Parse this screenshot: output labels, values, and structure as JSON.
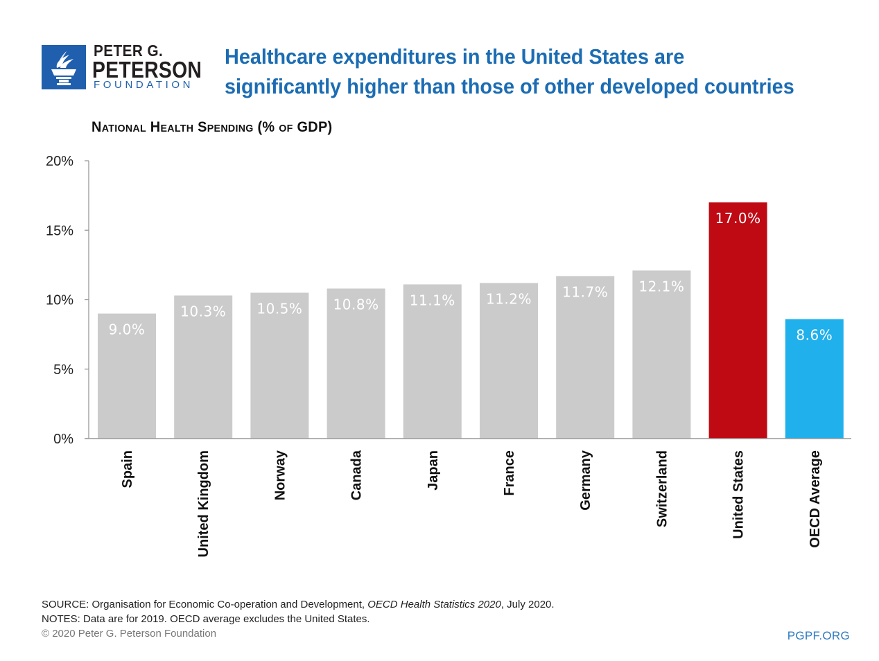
{
  "logo": {
    "icon": "torch-icon",
    "line1": "PETER G.",
    "line2": "PETERSON",
    "line3": "FOUNDATION"
  },
  "headline": {
    "line1": "Healthcare expenditures in the United States are",
    "line2": "significantly higher than those of other developed countries"
  },
  "colors": {
    "brand_blue": "#1f5fad",
    "headline_blue": "#1b6cb3",
    "bar_gray": "#cbcbcb",
    "bar_us_red": "#bf0a14",
    "bar_oecd_blue": "#20b0ec",
    "axis_gray": "#999999"
  },
  "chart_data": {
    "type": "bar",
    "title": "National Health Spending (% of GDP)",
    "xlabel": "",
    "ylabel": "",
    "ylim": [
      0,
      20
    ],
    "yticks": [
      0,
      5,
      10,
      15,
      20
    ],
    "ytick_labels": [
      "0%",
      "5%",
      "10%",
      "15%",
      "20%"
    ],
    "grid": false,
    "legend": "none",
    "categories": [
      "Spain",
      "United Kingdom",
      "Norway",
      "Canada",
      "Japan",
      "France",
      "Germany",
      "Switzerland",
      "United States",
      "OECD Average"
    ],
    "values": [
      9.0,
      10.3,
      10.5,
      10.8,
      11.1,
      11.2,
      11.7,
      12.1,
      17.0,
      8.6
    ],
    "data_labels": [
      "9.0%",
      "10.3%",
      "10.5%",
      "10.8%",
      "11.1%",
      "11.2%",
      "11.7%",
      "12.1%",
      "17.0%",
      "8.6%"
    ],
    "bar_colors": [
      "#cbcbcb",
      "#cbcbcb",
      "#cbcbcb",
      "#cbcbcb",
      "#cbcbcb",
      "#cbcbcb",
      "#cbcbcb",
      "#cbcbcb",
      "#bf0a14",
      "#20b0ec"
    ]
  },
  "footer": {
    "source_prefix": "SOURCE: Organisation for Economic Co-operation and Development, ",
    "source_italic": "OECD Health Statistics 2020",
    "source_suffix": ", July 2020.",
    "notes": "NOTES: Data are for 2019. OECD average excludes the United States.",
    "copyright": "© 2020 Peter G. Peterson Foundation",
    "site": "PGPF.ORG"
  }
}
